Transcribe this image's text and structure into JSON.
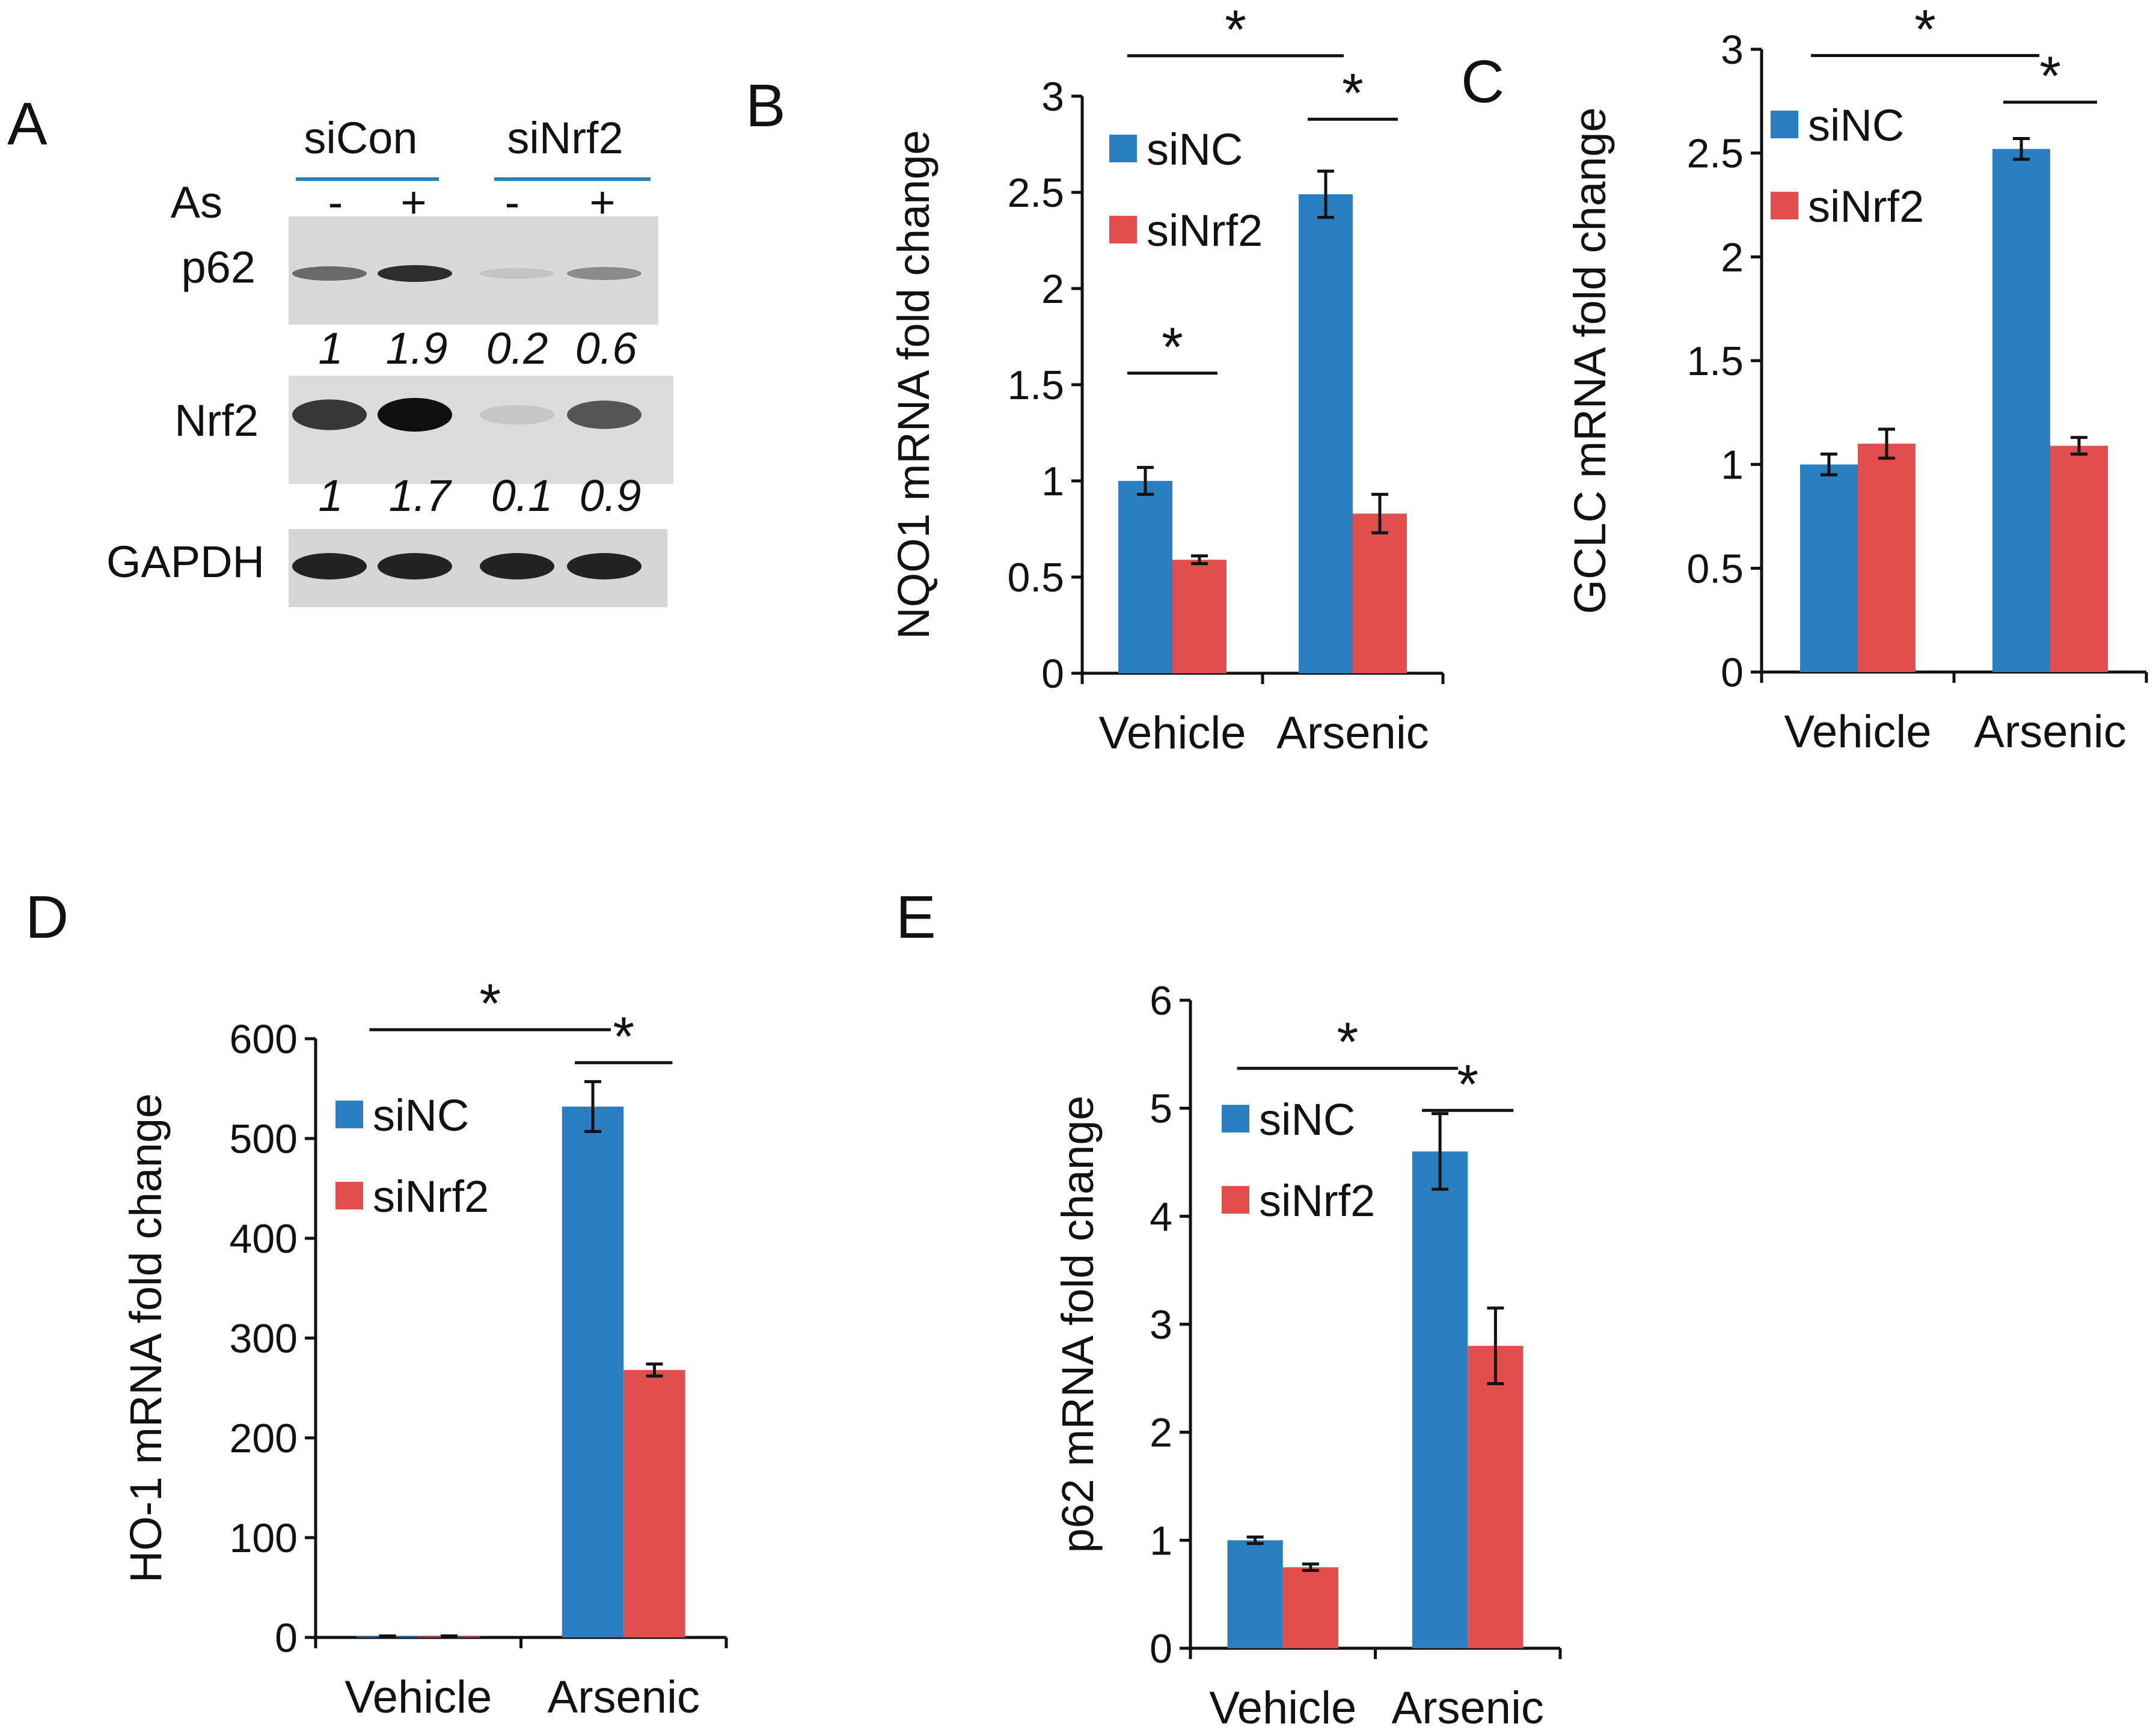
{
  "panel_labels": [
    "A",
    "B",
    "C",
    "D",
    "E"
  ],
  "western_blot": {
    "groups": [
      "siCon",
      "siNrf2"
    ],
    "treatment_label": "As",
    "treatment_marks": [
      "-",
      "+",
      "-",
      "+"
    ],
    "bands": [
      {
        "name": "p62",
        "quant": [
          "1",
          "1.9",
          "0.2",
          "0.6"
        ],
        "intensity": [
          0.55,
          0.85,
          0.1,
          0.38
        ]
      },
      {
        "name": "Nrf2",
        "quant": [
          "1",
          "1.7",
          "0.1",
          "0.9"
        ],
        "intensity": [
          0.8,
          1.0,
          0.08,
          0.65
        ]
      },
      {
        "name": "GAPDH",
        "quant": [],
        "intensity": [
          0.9,
          0.9,
          0.9,
          0.9
        ]
      }
    ]
  },
  "colors": {
    "siNC": "#2a7fc0",
    "siNrf2": "#e04e4e"
  },
  "chart_data": [
    {
      "panel": "B",
      "type": "bar",
      "ylabel": "NQO1 mRNA fold change",
      "categories": [
        "Vehicle",
        "Arsenic"
      ],
      "series": [
        {
          "name": "siNC",
          "values": [
            1.0,
            2.49
          ],
          "errors": [
            0.07,
            0.12
          ]
        },
        {
          "name": "siNrf2",
          "values": [
            0.59,
            0.83
          ],
          "errors": [
            0.02,
            0.1
          ]
        }
      ],
      "ylim": [
        0,
        3
      ],
      "yticks": [
        "0",
        "0.5",
        "1",
        "1.5",
        "2",
        "2.5",
        "3"
      ],
      "annotations": [
        "*",
        "*",
        "*"
      ]
    },
    {
      "panel": "C",
      "type": "bar",
      "ylabel": "GCLC mRNA fold change",
      "categories": [
        "Vehicle",
        "Arsenic"
      ],
      "series": [
        {
          "name": "siNC",
          "values": [
            1.0,
            2.52
          ],
          "errors": [
            0.05,
            0.05
          ]
        },
        {
          "name": "siNrf2",
          "values": [
            1.1,
            1.09
          ],
          "errors": [
            0.07,
            0.04
          ]
        }
      ],
      "ylim": [
        0,
        3
      ],
      "yticks": [
        "0",
        "0.5",
        "1",
        "1.5",
        "2",
        "2.5",
        "3"
      ],
      "annotations": [
        "*",
        "*"
      ]
    },
    {
      "panel": "D",
      "type": "bar",
      "ylabel": "HO-1 mRNA fold change",
      "categories": [
        "Vehicle",
        "Arsenic"
      ],
      "series": [
        {
          "name": "siNC",
          "values": [
            1,
            532
          ],
          "errors": [
            0.5,
            25
          ]
        },
        {
          "name": "siNrf2",
          "values": [
            1,
            268
          ],
          "errors": [
            0.5,
            6
          ]
        }
      ],
      "ylim": [
        0,
        600
      ],
      "yticks": [
        "0",
        "100",
        "200",
        "300",
        "400",
        "500",
        "600"
      ],
      "annotations": [
        "*",
        "*"
      ]
    },
    {
      "panel": "E",
      "type": "bar",
      "ylabel": "p62 mRNA fold change",
      "categories": [
        "Vehicle",
        "Arsenic"
      ],
      "series": [
        {
          "name": "siNC",
          "values": [
            1.0,
            4.6
          ],
          "errors": [
            0.03,
            0.35
          ]
        },
        {
          "name": "siNrf2",
          "values": [
            0.75,
            2.8
          ],
          "errors": [
            0.03,
            0.35
          ]
        }
      ],
      "ylim": [
        0,
        6
      ],
      "yticks": [
        "0",
        "1",
        "2",
        "3",
        "4",
        "5",
        "6"
      ],
      "annotations": [
        "*",
        "*"
      ]
    }
  ]
}
